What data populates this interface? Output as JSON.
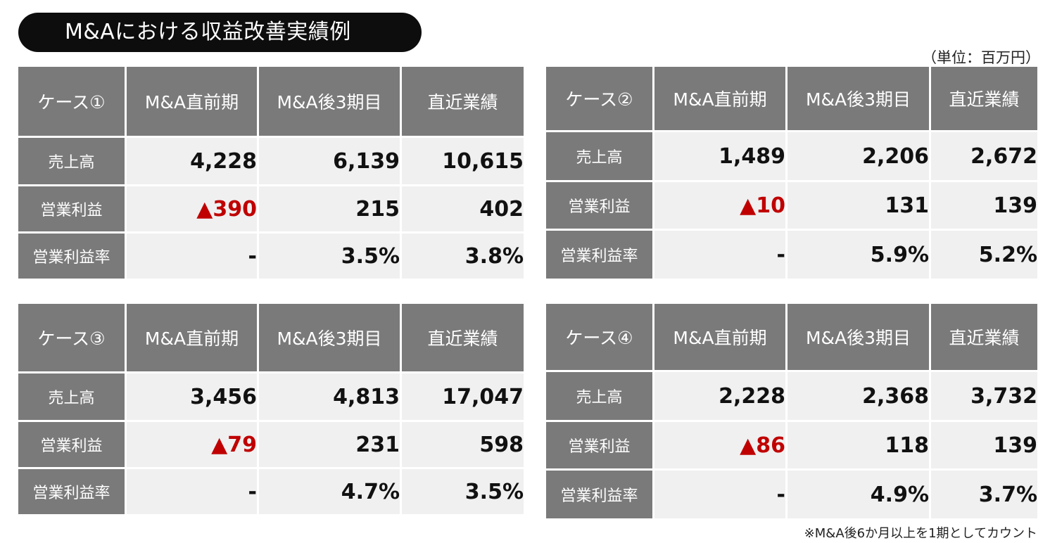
{
  "title": "M&Aにおける収益改善実績例",
  "unit_note": "（単位：百万円）",
  "footnote": "※M&A後6か月以上を1期としてカウント",
  "column_headers": [
    "M&A直前期",
    "M&A後3期目",
    "直近業績"
  ],
  "row_labels": [
    "売上高",
    "営業利益",
    "営業利益率"
  ],
  "colors": {
    "header_bg": "#7a7a7a",
    "cell_bg": "#f0f0f0",
    "negative": "#c00000",
    "title_bg": "#0d0d0d"
  },
  "cases": [
    {
      "label": "ケース①",
      "rows": [
        [
          "4,228",
          "6,139",
          "10,615"
        ],
        [
          "▲390",
          "215",
          "402"
        ],
        [
          "-",
          "3.5%",
          "3.8%"
        ]
      ]
    },
    {
      "label": "ケース②",
      "rows": [
        [
          "1,489",
          "2,206",
          "2,672"
        ],
        [
          "▲10",
          "131",
          "139"
        ],
        [
          "-",
          "5.9%",
          "5.2%"
        ]
      ]
    },
    {
      "label": "ケース③",
      "rows": [
        [
          "3,456",
          "4,813",
          "17,047"
        ],
        [
          "▲79",
          "231",
          "598"
        ],
        [
          "-",
          "4.7%",
          "3.5%"
        ]
      ]
    },
    {
      "label": "ケース④",
      "rows": [
        [
          "2,228",
          "2,368",
          "3,732"
        ],
        [
          "▲86",
          "118",
          "139"
        ],
        [
          "-",
          "4.9%",
          "3.7%"
        ]
      ]
    }
  ]
}
